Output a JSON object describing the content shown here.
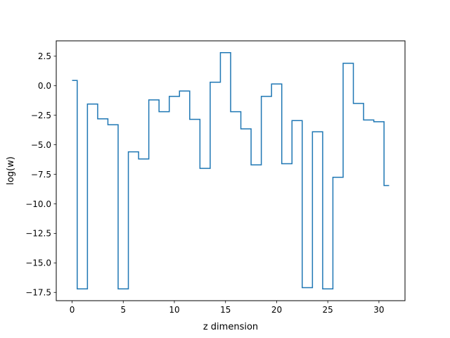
{
  "chart_data": {
    "type": "line",
    "drawstyle": "steps-mid",
    "title": "",
    "xlabel": "z dimension",
    "ylabel": "log(w)",
    "xlim": [
      -1.55,
      32.55
    ],
    "ylim": [
      -18.2,
      3.8
    ],
    "xticks": [
      0,
      5,
      10,
      15,
      20,
      25,
      30
    ],
    "xtick_labels": [
      "0",
      "5",
      "10",
      "15",
      "20",
      "25",
      "30"
    ],
    "yticks": [
      2.5,
      0.0,
      -2.5,
      -5.0,
      -7.5,
      -10.0,
      -12.5,
      -15.0,
      -17.5
    ],
    "ytick_labels": [
      "2.5",
      "0.0",
      "−2.5",
      "−5.0",
      "−7.5",
      "−10.0",
      "−12.5",
      "−15.0",
      "−17.5"
    ],
    "grid": false,
    "series": [
      {
        "color": "#1f77b4",
        "x": [
          0,
          1,
          2,
          3,
          4,
          5,
          6,
          7,
          8,
          9,
          10,
          11,
          12,
          13,
          14,
          15,
          16,
          17,
          18,
          19,
          20,
          21,
          22,
          23,
          24,
          25,
          26,
          27,
          28,
          29,
          30,
          31
        ],
        "y": [
          0.45,
          -17.2,
          -1.55,
          -2.8,
          -3.3,
          -17.2,
          -5.6,
          -6.2,
          -1.2,
          -2.2,
          -0.9,
          -0.45,
          -2.85,
          -7.0,
          0.3,
          2.8,
          -2.2,
          -3.65,
          -6.7,
          -0.9,
          0.15,
          -6.6,
          -2.95,
          -17.1,
          -3.9,
          -17.2,
          -7.75,
          1.9,
          -1.5,
          -2.9,
          -3.05,
          -8.45
        ]
      }
    ]
  }
}
